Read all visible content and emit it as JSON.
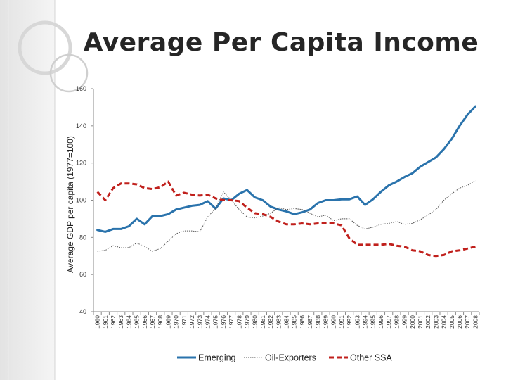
{
  "slide": {
    "title": "Average Per Capita Income"
  },
  "chart_data": {
    "type": "line",
    "title": "Average Per Capita Income",
    "xlabel": "",
    "ylabel": "Average GDP per capita (1977=100)",
    "ylim": [
      40,
      160
    ],
    "yticks": [
      40,
      60,
      80,
      100,
      120,
      140,
      160
    ],
    "grid": false,
    "legend_position": "bottom",
    "x": [
      "1960",
      "1961",
      "1962",
      "1963",
      "1964",
      "1965",
      "1966",
      "1967",
      "1968",
      "1969",
      "1970",
      "1971",
      "1972",
      "1973",
      "1974",
      "1975",
      "1976",
      "1977",
      "1978",
      "1979",
      "1980",
      "1981",
      "1982",
      "1983",
      "1984",
      "1985",
      "1986",
      "1987",
      "1988",
      "1989",
      "1990",
      "1991",
      "1992",
      "1993",
      "1994",
      "1995",
      "1996",
      "1997",
      "1998",
      "1999",
      "2000",
      "2001",
      "2002",
      "2003",
      "2004",
      "2005",
      "2006",
      "2007",
      "2008"
    ],
    "series": [
      {
        "name": "Emerging",
        "color": "#2a73ac",
        "style": "solid",
        "values": [
          84,
          83,
          84.5,
          84.5,
          86,
          90,
          87,
          91.5,
          91.5,
          92.5,
          95,
          96,
          97,
          97.5,
          99.5,
          95.5,
          101,
          100,
          103.5,
          105.5,
          101.5,
          100,
          96.5,
          95,
          94,
          92.5,
          93.5,
          95,
          98.5,
          100,
          100,
          100.5,
          100.5,
          102,
          97.5,
          100.5,
          104.5,
          108,
          110,
          112.5,
          114.5,
          118,
          120.5,
          123,
          127.5,
          133,
          140,
          146,
          150.5
        ]
      },
      {
        "name": "Oil-Exporters",
        "color": "#555555",
        "style": "dotted",
        "values": [
          72.5,
          73,
          75.5,
          74.5,
          74.5,
          77,
          75,
          72.5,
          74,
          78,
          82,
          83.5,
          83.5,
          83,
          91,
          95.5,
          104.5,
          100,
          95,
          91,
          90.5,
          91.5,
          93,
          96,
          95,
          95.5,
          95,
          93,
          91,
          92,
          89,
          90,
          90,
          86.5,
          84.5,
          85.5,
          87,
          87.5,
          88.5,
          87,
          87.5,
          89.5,
          92,
          95,
          100,
          103.5,
          106.5,
          108,
          110.5
        ]
      },
      {
        "name": "Other SSA",
        "color": "#c0201c",
        "style": "dashed",
        "values": [
          104.5,
          100,
          106.5,
          109,
          109,
          108.5,
          106.5,
          106,
          107,
          110,
          102.5,
          104,
          103,
          102.5,
          103,
          101,
          100,
          100,
          99.5,
          96,
          93,
          92.5,
          91,
          88.5,
          87,
          87,
          87.5,
          87,
          87.5,
          87.5,
          87.5,
          86.5,
          79.5,
          76,
          76,
          76,
          76,
          76.5,
          75.5,
          75,
          73,
          72.5,
          70.5,
          70,
          70.5,
          72.5,
          73,
          74,
          75
        ]
      }
    ]
  }
}
